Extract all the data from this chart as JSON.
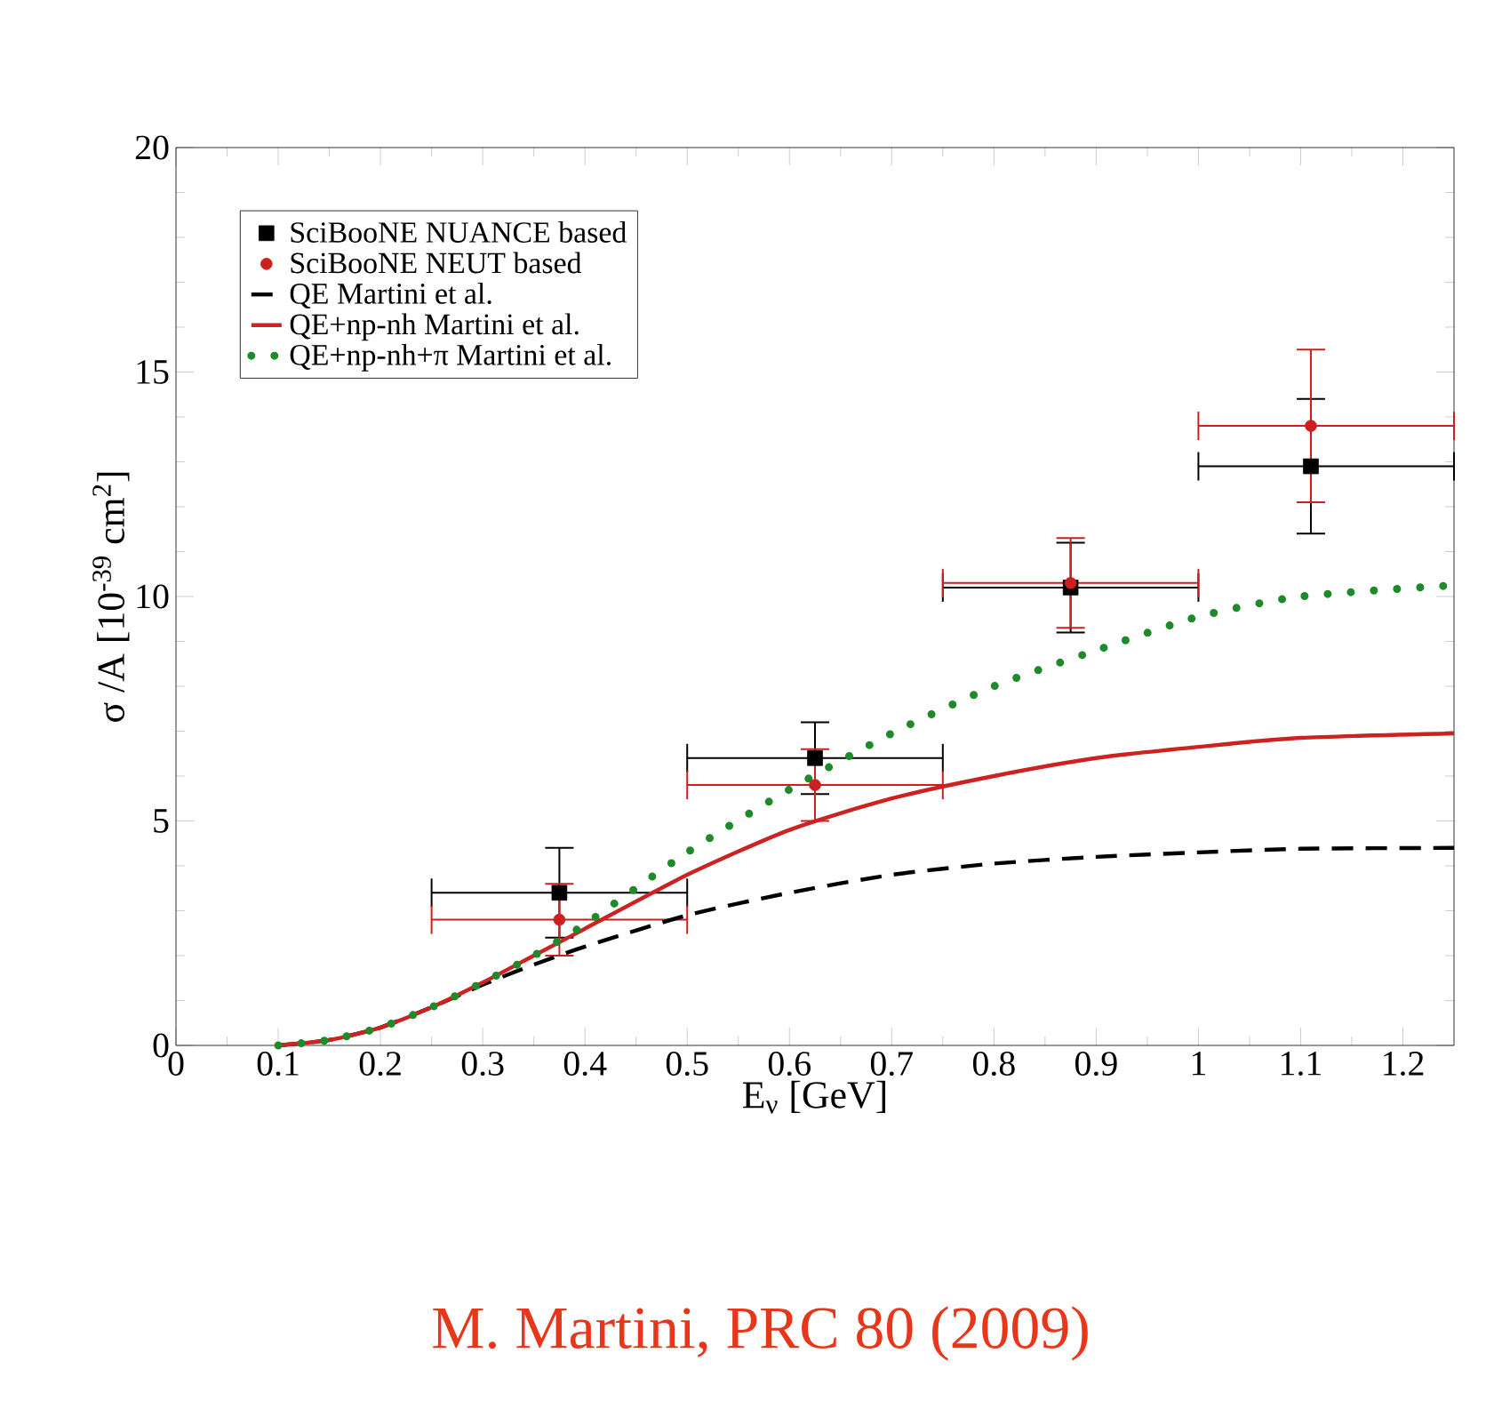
{
  "chart_data": {
    "type": "line",
    "xlabel": "E$_{ν}$ [GeV]",
    "ylabel": "σ /A [10$^{-39}$ cm$^{2}$]",
    "xlim": [
      0,
      1.25
    ],
    "ylim": [
      0,
      20
    ],
    "xticks": [
      0,
      0.1,
      0.2,
      0.3,
      0.4,
      0.5,
      0.6,
      0.7,
      0.8,
      0.9,
      1,
      1.1,
      1.2
    ],
    "yticks": [
      0,
      5,
      10,
      15,
      20
    ],
    "legend": "top left",
    "grid": false,
    "annotations": [
      "M. Martini, PRC 80 (2009)"
    ],
    "series": [
      {
        "name": "SciBooNE NUANCE based",
        "type": "scatter",
        "marker": "square",
        "color": "#000000",
        "x": [
          0.375,
          0.625,
          0.875,
          1.11
        ],
        "values": [
          3.4,
          6.4,
          10.2,
          12.9
        ],
        "errors": [
          1.0,
          0.8,
          1.0,
          1.5
        ],
        "xerrors": [
          0.125,
          0.125,
          0.125,
          [
            1.0,
            1.25
          ]
        ]
      },
      {
        "name": "SciBooNE NEUT based",
        "type": "scatter",
        "marker": "circle",
        "color": "#cc1f1f",
        "x": [
          0.375,
          0.625,
          0.875,
          1.11
        ],
        "values": [
          2.8,
          5.8,
          10.3,
          13.8
        ],
        "errors": [
          0.8,
          0.8,
          1.0,
          1.7
        ],
        "xerrors": [
          0.125,
          0.125,
          0.125,
          [
            1.0,
            1.25
          ]
        ]
      },
      {
        "name": "QE Martini et al.",
        "line_style": "dashed",
        "color": "#000000",
        "x": [
          0.1,
          0.15,
          0.2,
          0.25,
          0.3,
          0.35,
          0.4,
          0.5,
          0.6,
          0.7,
          0.8,
          0.9,
          1.0,
          1.1,
          1.25
        ],
        "values": [
          0,
          0.12,
          0.4,
          0.85,
          1.35,
          1.8,
          2.2,
          2.9,
          3.4,
          3.8,
          4.05,
          4.2,
          4.3,
          4.38,
          4.4
        ]
      },
      {
        "name": "QE+np-nh Martini et al.",
        "line_style": "solid",
        "color": "#cc2222",
        "x": [
          0.1,
          0.15,
          0.2,
          0.25,
          0.3,
          0.35,
          0.4,
          0.5,
          0.6,
          0.7,
          0.8,
          0.9,
          1.0,
          1.1,
          1.25
        ],
        "values": [
          0,
          0.12,
          0.4,
          0.85,
          1.4,
          2.0,
          2.6,
          3.8,
          4.8,
          5.5,
          6.0,
          6.4,
          6.65,
          6.85,
          6.95
        ]
      },
      {
        "name": "QE+np-nh+π Martini et al.",
        "line_style": "dotted",
        "color": "#1f8a2a",
        "x": [
          0.1,
          0.15,
          0.2,
          0.25,
          0.3,
          0.35,
          0.4,
          0.5,
          0.6,
          0.7,
          0.8,
          0.9,
          1.0,
          1.1,
          1.25
        ],
        "values": [
          0,
          0.12,
          0.4,
          0.85,
          1.4,
          2.0,
          2.7,
          4.3,
          5.7,
          6.95,
          8.0,
          8.8,
          9.55,
          10.0,
          10.25
        ]
      }
    ]
  }
}
